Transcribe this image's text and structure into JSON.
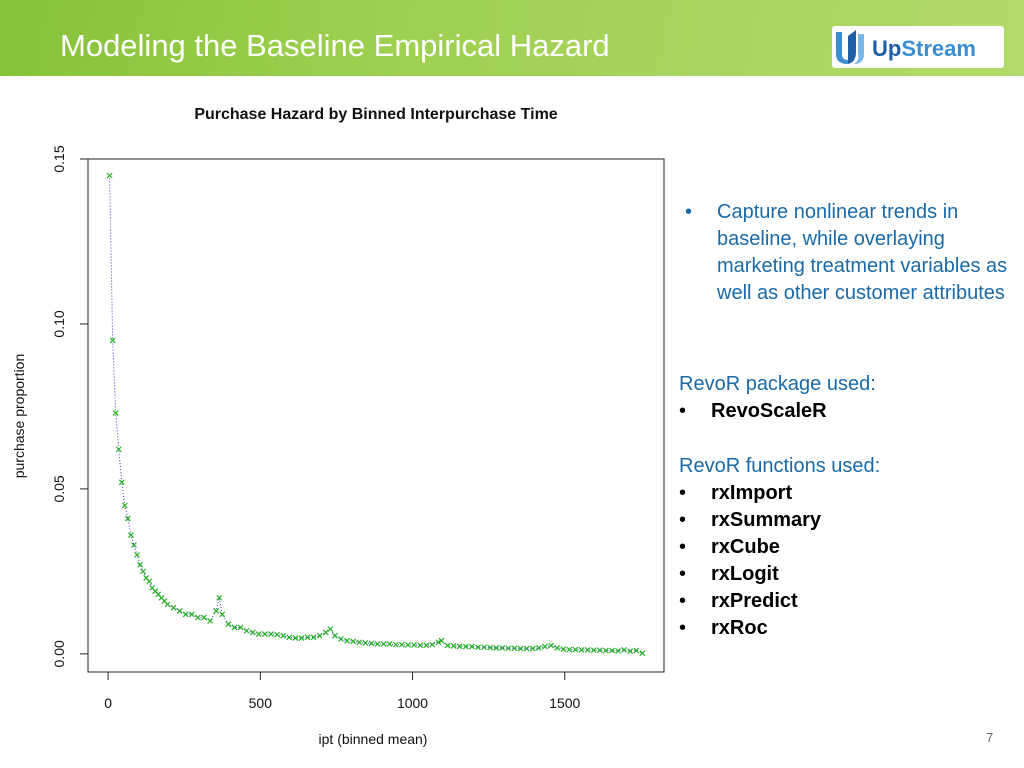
{
  "header": {
    "title": "Modeling the Baseline Empirical Hazard",
    "logo": {
      "up": "Up",
      "stream": "Stream"
    }
  },
  "chart_data": {
    "type": "scatter",
    "title": "Purchase Hazard by Binned Interpurchase Time",
    "xlabel": "ipt (binned mean)",
    "ylabel": "purchase proportion",
    "color": "#22b022",
    "line_color": "#3a3acc",
    "xlim": [
      -66,
      1826
    ],
    "ylim": [
      -0.0055,
      0.15
    ],
    "xticks": [
      0,
      500,
      1000,
      1500
    ],
    "yticks": [
      {
        "value": 0,
        "label": "0.00"
      },
      {
        "value": 0.05,
        "label": "0.05"
      },
      {
        "value": 0.1,
        "label": "0.10"
      },
      {
        "value": 0.15,
        "label": "0.15"
      }
    ],
    "x": [
      5,
      15,
      25,
      35,
      45,
      55,
      65,
      75,
      85,
      95,
      105,
      115,
      125,
      135,
      145,
      155,
      165,
      175,
      185,
      195,
      215,
      235,
      255,
      275,
      295,
      315,
      335,
      355,
      365,
      375,
      395,
      415,
      435,
      455,
      475,
      495,
      515,
      535,
      555,
      575,
      595,
      615,
      635,
      655,
      675,
      695,
      715,
      730,
      745,
      765,
      785,
      805,
      825,
      845,
      865,
      885,
      905,
      925,
      945,
      965,
      985,
      1005,
      1025,
      1045,
      1065,
      1085,
      1095,
      1115,
      1135,
      1155,
      1175,
      1195,
      1215,
      1235,
      1255,
      1275,
      1295,
      1315,
      1335,
      1355,
      1375,
      1395,
      1415,
      1435,
      1455,
      1475,
      1495,
      1515,
      1535,
      1555,
      1575,
      1595,
      1615,
      1635,
      1655,
      1675,
      1695,
      1715,
      1735,
      1755
    ],
    "values": [
      0.145,
      0.095,
      0.073,
      0.062,
      0.052,
      0.045,
      0.041,
      0.036,
      0.033,
      0.03,
      0.027,
      0.025,
      0.023,
      0.022,
      0.02,
      0.019,
      0.018,
      0.017,
      0.016,
      0.015,
      0.014,
      0.013,
      0.012,
      0.012,
      0.011,
      0.011,
      0.01,
      0.013,
      0.017,
      0.012,
      0.009,
      0.008,
      0.008,
      0.007,
      0.0065,
      0.006,
      0.006,
      0.006,
      0.0058,
      0.0055,
      0.005,
      0.0048,
      0.0048,
      0.005,
      0.005,
      0.0055,
      0.0065,
      0.0075,
      0.0055,
      0.0045,
      0.004,
      0.0038,
      0.0035,
      0.0033,
      0.0032,
      0.003,
      0.003,
      0.003,
      0.0028,
      0.0028,
      0.0027,
      0.0027,
      0.0026,
      0.0026,
      0.0028,
      0.0035,
      0.004,
      0.0025,
      0.0024,
      0.0023,
      0.0022,
      0.0022,
      0.002,
      0.002,
      0.0019,
      0.0018,
      0.0018,
      0.0017,
      0.0017,
      0.0016,
      0.0016,
      0.0016,
      0.0018,
      0.0022,
      0.0025,
      0.0018,
      0.0014,
      0.0013,
      0.0013,
      0.0012,
      0.0012,
      0.0011,
      0.0011,
      0.001,
      0.001,
      0.0009,
      0.0012,
      0.0008,
      0.001,
      0.0002
    ]
  },
  "bullets": [
    "Capture nonlinear trends in baseline, while overlaying marketing treatment variables as well as other customer attributes"
  ],
  "package_heading": "RevoR package used:",
  "packages": [
    "RevoScaleR"
  ],
  "functions_heading": "RevoR functions used:",
  "functions": [
    "rxImport",
    "rxSummary",
    "rxCube",
    "rxLogit",
    "rxPredict",
    "rxRoc"
  ],
  "page_number": "7"
}
